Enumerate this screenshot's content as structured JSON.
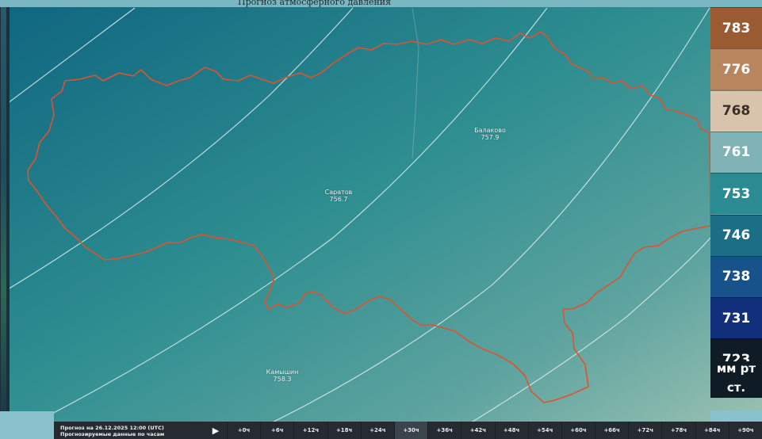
{
  "header": {
    "text": "Прогноз атмосферного давления"
  },
  "cities": [
    {
      "name": "Балаково",
      "value": "757.9"
    },
    {
      "name": "Саратов",
      "value": "756.7"
    },
    {
      "name": "Камышин",
      "value": "758.3"
    }
  ],
  "legend": {
    "items": [
      {
        "label": "783",
        "color": "#9a5b33",
        "text_color": "#ffffff"
      },
      {
        "label": "776",
        "color": "#b8865e",
        "text_color": "#ffffff"
      },
      {
        "label": "768",
        "color": "#d8c4ac",
        "text_color": "#3b2e24"
      },
      {
        "label": "761",
        "color": "#7fb3b6",
        "text_color": "#ffffff"
      },
      {
        "label": "753",
        "color": "#2b8b93",
        "text_color": "#ffffff"
      },
      {
        "label": "746",
        "color": "#1c6e86",
        "text_color": "#ffffff"
      },
      {
        "label": "738",
        "color": "#17528a",
        "text_color": "#ffffff"
      },
      {
        "label": "731",
        "color": "#112f7a",
        "text_color": "#ffffff"
      },
      {
        "label": "723",
        "color": "#0f1c25",
        "text_color": "#ffffff"
      }
    ],
    "unit_line1": "мм рт",
    "unit_line2": "ст."
  },
  "timeline": {
    "info_line1": "Прогноз на 26.12.2025 12:00 (UTC)",
    "info_line2": "Прогнозируемые данные по часам",
    "play_icon": "play-icon",
    "steps": [
      "+0ч",
      "+6ч",
      "+12ч",
      "+18ч",
      "+24ч",
      "+30ч",
      "+36ч",
      "+42ч",
      "+48ч",
      "+54ч",
      "+60ч",
      "+66ч",
      "+72ч",
      "+78ч",
      "+84ч",
      "+90ч"
    ],
    "active_step": "+30ч"
  },
  "colors": {
    "region_border": "#e0522e",
    "isobar": "#e6f2f3",
    "gradient_start": "#12687f",
    "gradient_end": "#86b7b2"
  }
}
